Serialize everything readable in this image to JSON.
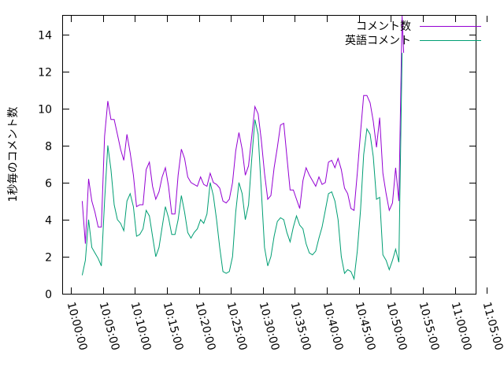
{
  "chart_data": {
    "type": "line",
    "ylabel": "1秒毎のコメント数",
    "ylim": [
      0,
      15
    ],
    "y_ticks": [
      0,
      2,
      4,
      6,
      8,
      10,
      12,
      14
    ],
    "x_ticks": [
      "10:00:00",
      "10:05:00",
      "10:10:00",
      "10:15:00",
      "10:20:00",
      "10:25:00",
      "10:30:00",
      "10:35:00",
      "10:40:00",
      "10:45:00",
      "10:50:00",
      "10:55:00",
      "11:00:00",
      "11:05:00"
    ],
    "xlim": [
      "09:58:45",
      "11:03:15"
    ],
    "grid": false,
    "legend_position": "top-right",
    "series": [
      {
        "name": "コメント数",
        "color": "#9400d3",
        "points": [
          [
            "10:01:45",
            5.0
          ],
          [
            "10:02:15",
            2.7
          ],
          [
            "10:02:45",
            6.2
          ],
          [
            "10:03:15",
            5.0
          ],
          [
            "10:03:45",
            4.4
          ],
          [
            "10:04:15",
            3.6
          ],
          [
            "10:04:45",
            3.6
          ],
          [
            "10:05:15",
            8.5
          ],
          [
            "10:05:45",
            10.4
          ],
          [
            "10:06:15",
            9.4
          ],
          [
            "10:06:45",
            9.4
          ],
          [
            "10:07:15",
            8.6
          ],
          [
            "10:07:45",
            7.8
          ],
          [
            "10:08:15",
            7.2
          ],
          [
            "10:08:45",
            8.6
          ],
          [
            "10:09:15",
            7.6
          ],
          [
            "10:09:45",
            6.4
          ],
          [
            "10:10:15",
            4.7
          ],
          [
            "10:10:45",
            4.8
          ],
          [
            "10:11:15",
            4.8
          ],
          [
            "10:11:45",
            6.7
          ],
          [
            "10:12:15",
            7.1
          ],
          [
            "10:12:45",
            5.8
          ],
          [
            "10:13:15",
            5.1
          ],
          [
            "10:13:45",
            5.5
          ],
          [
            "10:14:15",
            6.3
          ],
          [
            "10:14:45",
            6.8
          ],
          [
            "10:15:15",
            5.8
          ],
          [
            "10:15:45",
            4.3
          ],
          [
            "10:16:15",
            4.3
          ],
          [
            "10:16:45",
            6.4
          ],
          [
            "10:17:15",
            7.8
          ],
          [
            "10:17:45",
            7.3
          ],
          [
            "10:18:15",
            6.3
          ],
          [
            "10:18:45",
            6.0
          ],
          [
            "10:19:15",
            5.9
          ],
          [
            "10:19:45",
            5.8
          ],
          [
            "10:20:15",
            6.3
          ],
          [
            "10:20:45",
            5.9
          ],
          [
            "10:21:15",
            5.8
          ],
          [
            "10:21:45",
            6.5
          ],
          [
            "10:22:15",
            6.0
          ],
          [
            "10:22:45",
            5.9
          ],
          [
            "10:23:15",
            5.7
          ],
          [
            "10:23:45",
            5.0
          ],
          [
            "10:24:15",
            4.9
          ],
          [
            "10:24:45",
            5.1
          ],
          [
            "10:25:15",
            6.0
          ],
          [
            "10:25:45",
            7.7
          ],
          [
            "10:26:15",
            8.7
          ],
          [
            "10:26:45",
            7.8
          ],
          [
            "10:27:15",
            6.4
          ],
          [
            "10:27:45",
            6.9
          ],
          [
            "10:28:15",
            8.5
          ],
          [
            "10:28:45",
            10.1
          ],
          [
            "10:29:15",
            9.7
          ],
          [
            "10:29:45",
            8.3
          ],
          [
            "10:30:15",
            6.5
          ],
          [
            "10:30:45",
            5.1
          ],
          [
            "10:31:15",
            5.3
          ],
          [
            "10:31:45",
            6.8
          ],
          [
            "10:32:15",
            7.9
          ],
          [
            "10:32:45",
            9.1
          ],
          [
            "10:33:15",
            9.2
          ],
          [
            "10:33:45",
            7.4
          ],
          [
            "10:34:15",
            5.6
          ],
          [
            "10:34:45",
            5.6
          ],
          [
            "10:35:15",
            5.1
          ],
          [
            "10:35:45",
            4.6
          ],
          [
            "10:36:15",
            6.1
          ],
          [
            "10:36:45",
            6.8
          ],
          [
            "10:37:15",
            6.4
          ],
          [
            "10:37:45",
            6.1
          ],
          [
            "10:38:15",
            5.8
          ],
          [
            "10:38:45",
            6.3
          ],
          [
            "10:39:15",
            5.9
          ],
          [
            "10:39:45",
            6.0
          ],
          [
            "10:40:15",
            7.1
          ],
          [
            "10:40:45",
            7.2
          ],
          [
            "10:41:15",
            6.8
          ],
          [
            "10:41:45",
            7.3
          ],
          [
            "10:42:15",
            6.7
          ],
          [
            "10:42:45",
            5.7
          ],
          [
            "10:43:15",
            5.4
          ],
          [
            "10:43:45",
            4.6
          ],
          [
            "10:44:15",
            4.5
          ],
          [
            "10:44:45",
            6.5
          ],
          [
            "10:45:15",
            8.7
          ],
          [
            "10:45:45",
            10.7
          ],
          [
            "10:46:15",
            10.7
          ],
          [
            "10:46:45",
            10.3
          ],
          [
            "10:47:15",
            9.3
          ],
          [
            "10:47:45",
            7.9
          ],
          [
            "10:48:15",
            9.5
          ],
          [
            "10:48:45",
            6.5
          ],
          [
            "10:49:15",
            5.4
          ],
          [
            "10:49:45",
            4.5
          ],
          [
            "10:50:15",
            4.9
          ],
          [
            "10:50:45",
            6.8
          ],
          [
            "10:51:15",
            5.0
          ],
          [
            "10:51:45",
            15.0
          ],
          [
            "10:52:00",
            13.0
          ]
        ]
      },
      {
        "name": "英語コメント",
        "color": "#009e73",
        "points": [
          [
            "10:01:45",
            1.0
          ],
          [
            "10:02:15",
            1.8
          ],
          [
            "10:02:45",
            4.0
          ],
          [
            "10:03:15",
            2.5
          ],
          [
            "10:03:45",
            2.2
          ],
          [
            "10:04:15",
            1.9
          ],
          [
            "10:04:45",
            1.5
          ],
          [
            "10:05:15",
            5.0
          ],
          [
            "10:05:45",
            8.0
          ],
          [
            "10:06:15",
            6.7
          ],
          [
            "10:06:45",
            4.8
          ],
          [
            "10:07:15",
            4.0
          ],
          [
            "10:07:45",
            3.8
          ],
          [
            "10:08:15",
            3.4
          ],
          [
            "10:08:45",
            5.0
          ],
          [
            "10:09:15",
            5.4
          ],
          [
            "10:09:45",
            4.7
          ],
          [
            "10:10:15",
            3.1
          ],
          [
            "10:10:45",
            3.2
          ],
          [
            "10:11:15",
            3.5
          ],
          [
            "10:11:45",
            4.5
          ],
          [
            "10:12:15",
            4.2
          ],
          [
            "10:12:45",
            3.1
          ],
          [
            "10:13:15",
            2.0
          ],
          [
            "10:13:45",
            2.5
          ],
          [
            "10:14:15",
            3.6
          ],
          [
            "10:14:45",
            4.7
          ],
          [
            "10:15:15",
            4.1
          ],
          [
            "10:15:45",
            3.2
          ],
          [
            "10:16:15",
            3.2
          ],
          [
            "10:16:45",
            4.0
          ],
          [
            "10:17:15",
            5.3
          ],
          [
            "10:17:45",
            4.4
          ],
          [
            "10:18:15",
            3.3
          ],
          [
            "10:18:45",
            3.0
          ],
          [
            "10:19:15",
            3.3
          ],
          [
            "10:19:45",
            3.5
          ],
          [
            "10:20:15",
            4.0
          ],
          [
            "10:20:45",
            3.8
          ],
          [
            "10:21:15",
            4.3
          ],
          [
            "10:21:45",
            6.0
          ],
          [
            "10:22:15",
            5.3
          ],
          [
            "10:22:45",
            4.0
          ],
          [
            "10:23:15",
            2.5
          ],
          [
            "10:23:45",
            1.2
          ],
          [
            "10:24:15",
            1.1
          ],
          [
            "10:24:45",
            1.2
          ],
          [
            "10:25:15",
            2.0
          ],
          [
            "10:25:45",
            4.4
          ],
          [
            "10:26:15",
            6.0
          ],
          [
            "10:26:45",
            5.4
          ],
          [
            "10:27:15",
            4.0
          ],
          [
            "10:27:45",
            4.8
          ],
          [
            "10:28:15",
            7.3
          ],
          [
            "10:28:45",
            9.4
          ],
          [
            "10:29:15",
            8.6
          ],
          [
            "10:29:45",
            5.6
          ],
          [
            "10:30:15",
            2.5
          ],
          [
            "10:30:45",
            1.5
          ],
          [
            "10:31:15",
            2.0
          ],
          [
            "10:31:45",
            3.1
          ],
          [
            "10:32:15",
            3.9
          ],
          [
            "10:32:45",
            4.1
          ],
          [
            "10:33:15",
            4.0
          ],
          [
            "10:33:45",
            3.3
          ],
          [
            "10:34:15",
            2.8
          ],
          [
            "10:34:45",
            3.6
          ],
          [
            "10:35:15",
            4.2
          ],
          [
            "10:35:45",
            3.7
          ],
          [
            "10:36:15",
            3.5
          ],
          [
            "10:36:45",
            2.7
          ],
          [
            "10:37:15",
            2.2
          ],
          [
            "10:37:45",
            2.1
          ],
          [
            "10:38:15",
            2.3
          ],
          [
            "10:38:45",
            3.0
          ],
          [
            "10:39:15",
            3.6
          ],
          [
            "10:39:45",
            4.5
          ],
          [
            "10:40:15",
            5.4
          ],
          [
            "10:40:45",
            5.5
          ],
          [
            "10:41:15",
            5.0
          ],
          [
            "10:41:45",
            4.0
          ],
          [
            "10:42:15",
            2.0
          ],
          [
            "10:42:45",
            1.1
          ],
          [
            "10:43:15",
            1.3
          ],
          [
            "10:43:45",
            1.2
          ],
          [
            "10:44:15",
            0.8
          ],
          [
            "10:44:45",
            2.3
          ],
          [
            "10:45:15",
            4.5
          ],
          [
            "10:45:45",
            7.5
          ],
          [
            "10:46:15",
            8.9
          ],
          [
            "10:46:45",
            8.6
          ],
          [
            "10:47:15",
            7.4
          ],
          [
            "10:47:45",
            5.1
          ],
          [
            "10:48:15",
            5.2
          ],
          [
            "10:48:45",
            2.1
          ],
          [
            "10:49:15",
            1.8
          ],
          [
            "10:49:45",
            1.3
          ],
          [
            "10:50:15",
            1.8
          ],
          [
            "10:50:45",
            2.4
          ],
          [
            "10:51:15",
            1.7
          ],
          [
            "10:51:45",
            13.0
          ]
        ]
      }
    ]
  }
}
